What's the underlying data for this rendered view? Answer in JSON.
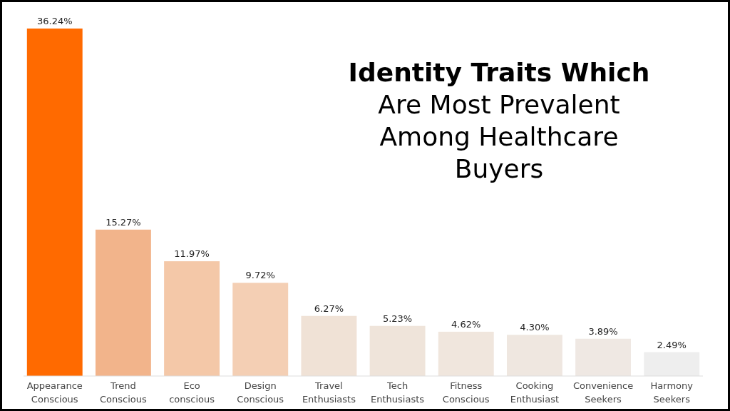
{
  "chart_data": {
    "type": "bar",
    "title": "Identity Traits Which Are Most Prevalent Among Healthcare Buyers",
    "categories": [
      "Appearance Conscious",
      "Trend Conscious",
      "Eco conscious",
      "Design Conscious",
      "Travel Enthusiasts",
      "Tech Enthusiasts",
      "Fitness Conscious",
      "Cooking Enthusiast",
      "Convenience Seekers",
      "Harmony Seekers"
    ],
    "values": [
      36.24,
      15.27,
      11.97,
      9.72,
      6.27,
      5.23,
      4.62,
      4.3,
      3.89,
      2.49
    ],
    "value_labels": [
      "36.24%",
      "15.27%",
      "11.97%",
      "9.72%",
      "6.27%",
      "5.23%",
      "4.62%",
      "4.30%",
      "3.89%",
      "2.49%"
    ],
    "colors": [
      "#ff6a00",
      "#f2b48b",
      "#f4c8a8",
      "#f4cfb4",
      "#f0e2d6",
      "#efe4da",
      "#f0e6dd",
      "#efe7e0",
      "#efe8e3",
      "#eeeeee"
    ]
  }
}
